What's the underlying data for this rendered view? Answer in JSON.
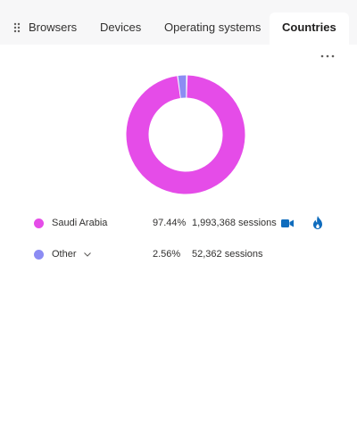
{
  "tabs": [
    {
      "label": "Browsers",
      "active": false
    },
    {
      "label": "Devices",
      "active": false
    },
    {
      "label": "Operating systems",
      "active": false
    },
    {
      "label": "Countries",
      "active": true
    }
  ],
  "donut": {
    "segments": [
      {
        "name": "Saudi Arabia",
        "percent": 97.44,
        "color": "#e54ce8"
      },
      {
        "name": "Other",
        "percent": 2.56,
        "color": "#8c8cf3"
      }
    ]
  },
  "legend": [
    {
      "name": "Saudi Arabia",
      "percent": "97.44%",
      "sessions": "1,993,368 sessions",
      "color": "#e54ce8",
      "icons": [
        "video-icon",
        "fire-icon"
      ]
    },
    {
      "name": "Other",
      "percent": "2.56%",
      "sessions": "52,362 sessions",
      "color": "#8c8cf3",
      "icons": [
        "chevron-down-icon"
      ]
    }
  ],
  "colors": {
    "accent_blue": "#0f6cbd",
    "tabbar_bg": "#f7f7f8"
  }
}
